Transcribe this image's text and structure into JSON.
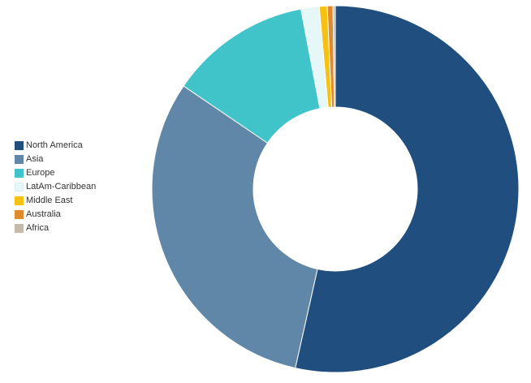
{
  "chart_data": {
    "type": "pie",
    "title": "",
    "categories": [
      "North America",
      "Asia",
      "Europe",
      "LatAm-Caribbean",
      "Middle East",
      "Australia",
      "Africa"
    ],
    "values": [
      53.5,
      31.0,
      12.5,
      1.6,
      0.7,
      0.5,
      0.2
    ],
    "unit": "percent",
    "donut": true,
    "start": "top",
    "direction": "clockwise",
    "legend": "left",
    "colors": [
      "#1f4e7f",
      "#6087a8",
      "#41c4c9",
      "#e6f7f8",
      "#f5c211",
      "#e08a2e",
      "#c4b9aa"
    ]
  }
}
